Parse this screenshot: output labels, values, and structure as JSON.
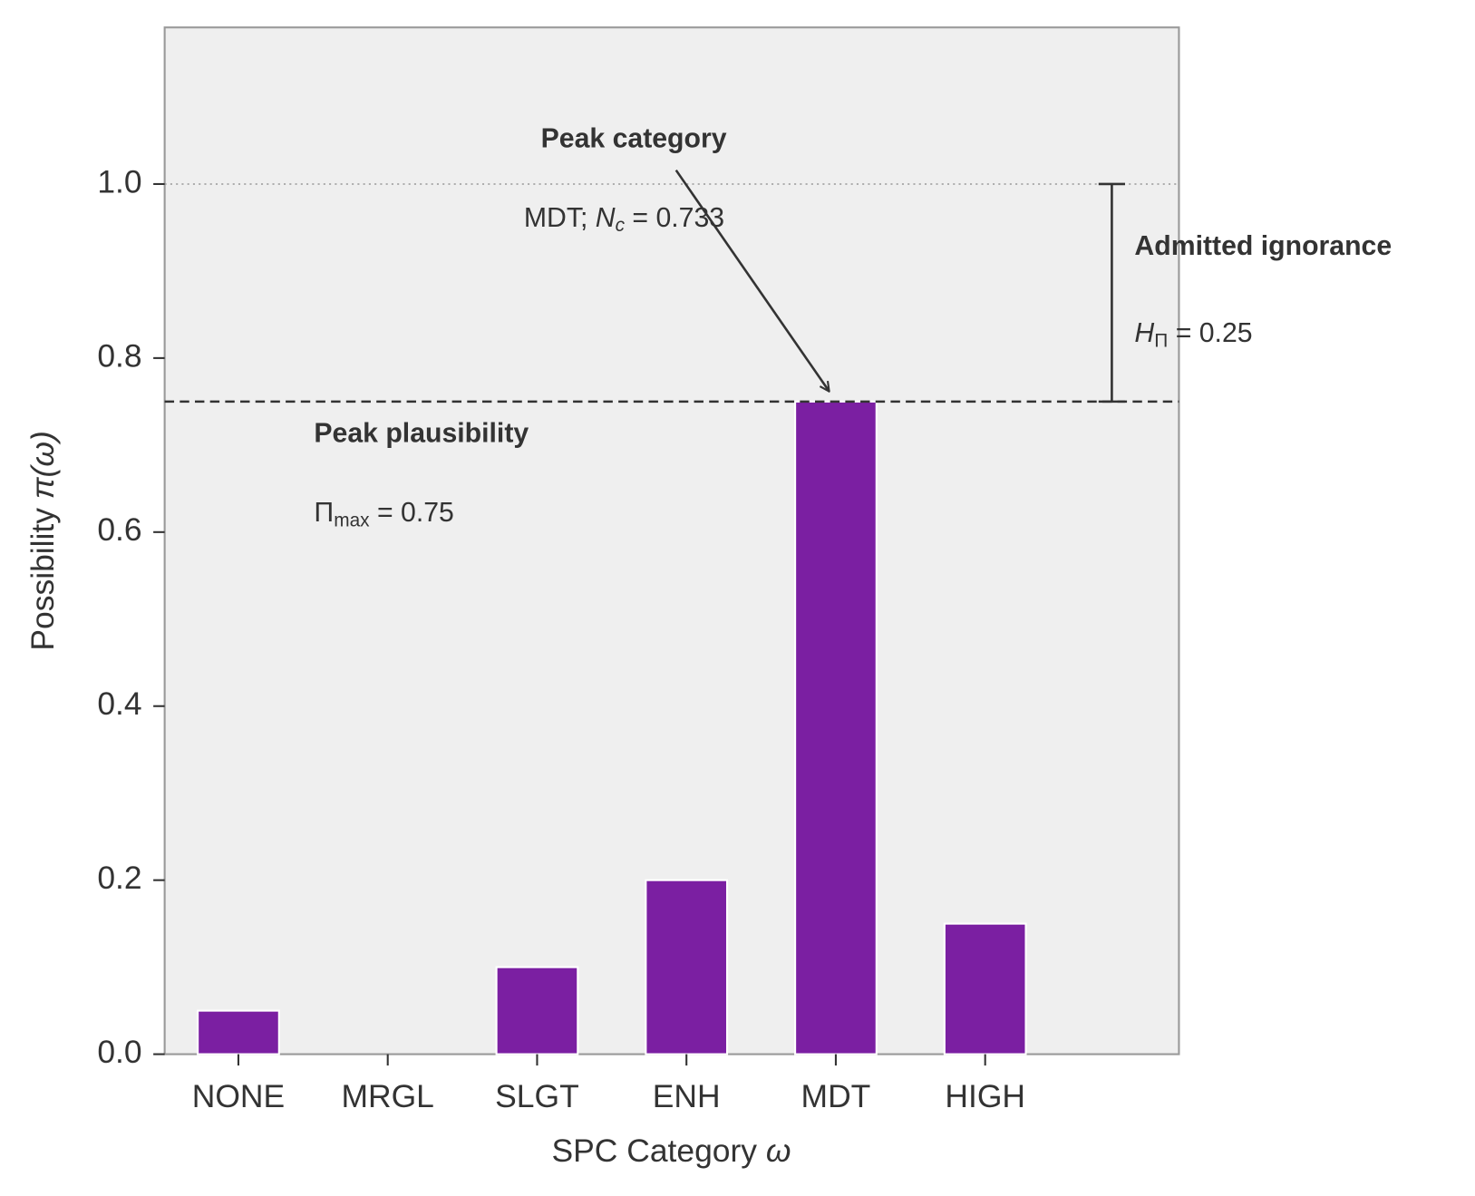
{
  "chart_data": {
    "type": "bar",
    "categories": [
      "NONE",
      "MRGL",
      "SLGT",
      "ENH",
      "MDT",
      "HIGH"
    ],
    "values": [
      0.05,
      0,
      0.1,
      0.2,
      0.75,
      0.15
    ],
    "color": "#7b1fa2",
    "x_label": [
      "SPC Category ",
      "ω"
    ],
    "y_label": [
      "Possibility ",
      "π(ω)"
    ],
    "ylim": [
      0,
      1.18
    ],
    "yticks": [
      {
        "value": 0,
        "label": "0.0"
      },
      0.2,
      0.4,
      0.6,
      0.8,
      {
        "value": 1,
        "label": "1.0"
      }
    ],
    "reference_line": 1.0,
    "peak_plausibility": 0.75,
    "admitted_ignorance": 0.25,
    "annotations": {
      "peak_category": {
        "title": "Peak category",
        "text": [
          "MDT;  ",
          "N",
          "c",
          " = 0.733"
        ]
      },
      "peak_plausibility": {
        "title": "Peak plausibility",
        "text": [
          "Π",
          "max",
          " = 0.75"
        ]
      },
      "admitted_ignorance": {
        "title": "Admitted ignorance",
        "text": [
          "H",
          "Π",
          " = 0.25"
        ]
      }
    }
  }
}
